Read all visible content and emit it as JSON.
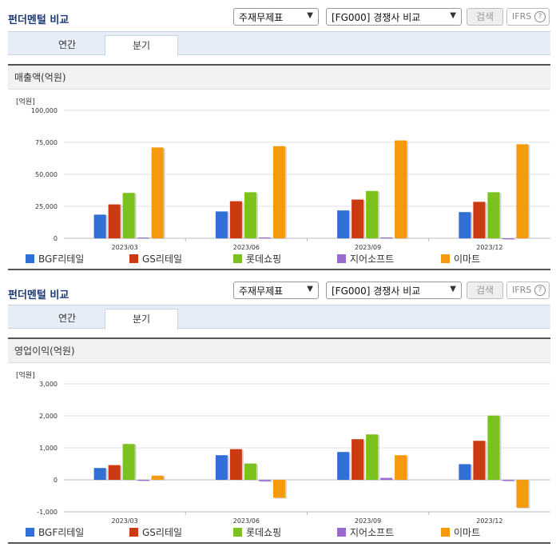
{
  "sections": [
    {
      "title": "펀더멘털 비교",
      "select1": "주재무제표",
      "select2": "[FG000] 경쟁사 비교",
      "search_label": "검색",
      "ifrs_label": "IFRS",
      "help_icon": "?",
      "tabs": [
        "연간",
        "분기"
      ],
      "active_tab": "분기",
      "chart_title": "매출액(억원)",
      "unit": "[억원]"
    },
    {
      "title": "펀더멘털 비교",
      "select1": "주재무제표",
      "select2": "[FG000] 경쟁사 비교",
      "search_label": "검색",
      "ifrs_label": "IFRS",
      "help_icon": "?",
      "tabs": [
        "연간",
        "분기"
      ],
      "active_tab": "분기",
      "chart_title": "영업이익(억원)",
      "unit": "[억원]"
    }
  ],
  "colors": {
    "BGF리테일": "#2f6fd6",
    "GS리테일": "#cc3a12",
    "롯데쇼핑": "#7cc21e",
    "지어소프트": "#9b6ad0",
    "이마트": "#f59a0c"
  },
  "chart_data": [
    {
      "type": "bar",
      "title": "매출액(억원)",
      "categories": [
        "2023/03",
        "2023/06",
        "2023/09",
        "2023/12"
      ],
      "ylim": [
        0,
        100000
      ],
      "yticks": [
        "0",
        "25,000",
        "50,000",
        "75,000",
        "100,000"
      ],
      "ytick_values": [
        0,
        25000,
        50000,
        75000,
        100000
      ],
      "series": [
        {
          "name": "BGF리테일",
          "values": [
            18500,
            21000,
            21800,
            20500
          ]
        },
        {
          "name": "GS리테일",
          "values": [
            26500,
            29000,
            30300,
            28500
          ]
        },
        {
          "name": "롯데쇼핑",
          "values": [
            35500,
            36000,
            37000,
            36000
          ]
        },
        {
          "name": "지어소프트",
          "values": [
            600,
            700,
            700,
            0
          ]
        },
        {
          "name": "이마트",
          "values": [
            71000,
            72000,
            76500,
            73500
          ]
        }
      ],
      "legend": "bottom",
      "grid": true
    },
    {
      "type": "bar",
      "title": "영업이익(억원)",
      "categories": [
        "2023/03",
        "2023/06",
        "2023/09",
        "2023/12"
      ],
      "ylim": [
        -1000,
        3000
      ],
      "yticks": [
        "-1,000",
        "0",
        "1,000",
        "2,000",
        "3,000"
      ],
      "ytick_values": [
        -1000,
        0,
        1000,
        2000,
        3000
      ],
      "series": [
        {
          "name": "BGF리테일",
          "values": [
            370,
            770,
            870,
            490
          ]
        },
        {
          "name": "GS리테일",
          "values": [
            460,
            960,
            1270,
            1220
          ]
        },
        {
          "name": "롯데쇼핑",
          "values": [
            1120,
            510,
            1420,
            2010
          ]
        },
        {
          "name": "지어소프트",
          "values": [
            -20,
            -40,
            60,
            -30
          ]
        },
        {
          "name": "이마트",
          "values": [
            130,
            -560,
            770,
            -870
          ]
        }
      ],
      "legend": "bottom",
      "grid": true
    }
  ]
}
